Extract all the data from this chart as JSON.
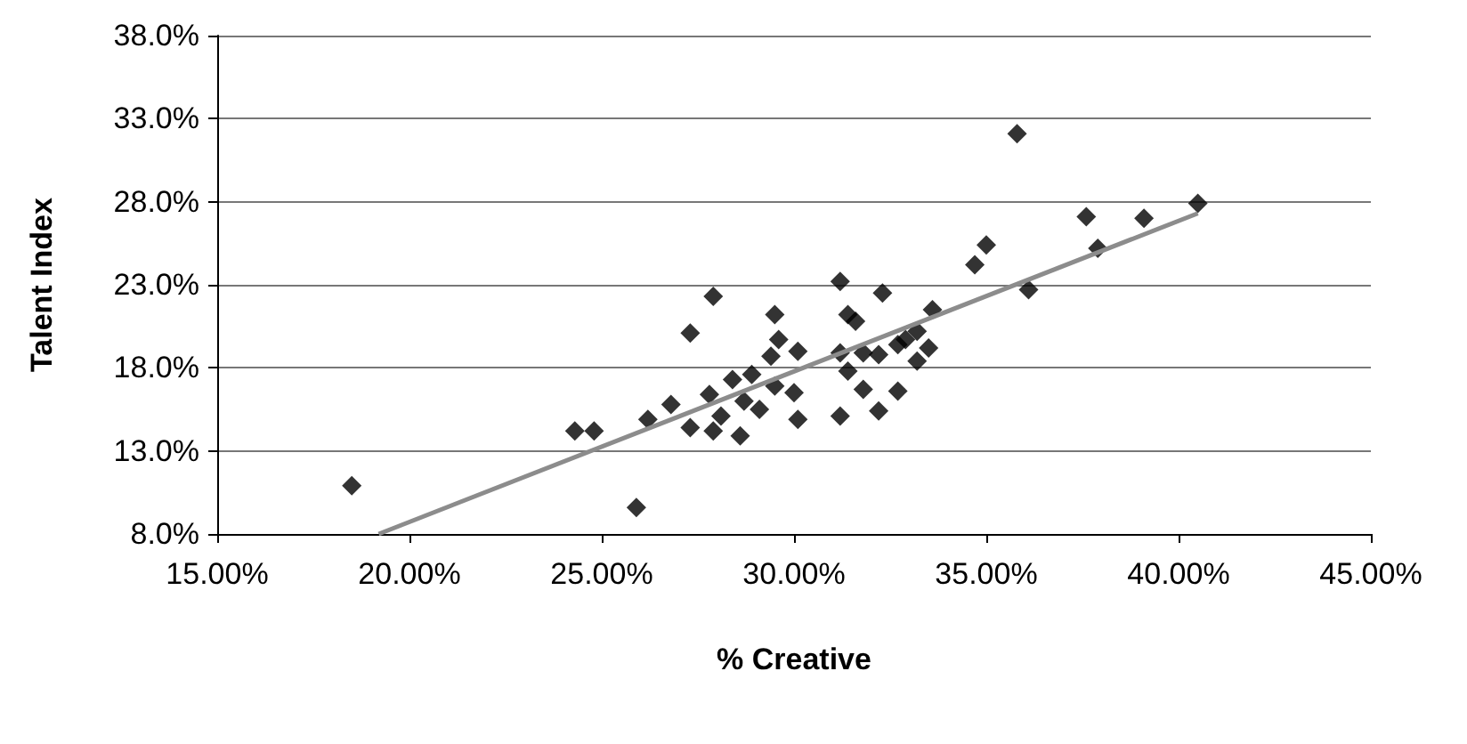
{
  "chart_data": {
    "type": "scatter",
    "xlabel": "% Creative",
    "ylabel": "Talent Index",
    "marker": "diamond",
    "grid": "y",
    "xlim": [
      15,
      45
    ],
    "xticks": [
      {
        "value": 15,
        "label": "15.00%"
      },
      {
        "value": 20,
        "label": "20.00%"
      },
      {
        "value": 25,
        "label": "25.00%"
      },
      {
        "value": 30,
        "label": "30.00%"
      },
      {
        "value": 35,
        "label": "35.00%"
      },
      {
        "value": 40,
        "label": "40.00%"
      },
      {
        "value": 45,
        "label": "45.00%"
      }
    ],
    "ylim": [
      8,
      38
    ],
    "yticks": [
      {
        "value": 8,
        "label": "8.0%"
      },
      {
        "value": 13,
        "label": "13.0%"
      },
      {
        "value": 18,
        "label": "18.0%"
      },
      {
        "value": 23,
        "label": "23.0%"
      },
      {
        "value": 28,
        "label": "28.0%"
      },
      {
        "value": 33,
        "label": "33.0%"
      },
      {
        "value": 38,
        "label": "38.0%"
      }
    ],
    "series": [
      {
        "color": "#000000",
        "x": [
          18.5,
          24.3,
          24.8,
          25.9,
          26.2,
          26.8,
          27.3,
          27.3,
          27.8,
          27.9,
          27.9,
          28.1,
          28.4,
          28.6,
          28.7,
          28.9,
          29.1,
          29.4,
          29.5,
          29.5,
          29.6,
          30.0,
          30.1,
          30.1,
          31.2,
          31.2,
          31.2,
          31.4,
          31.4,
          31.6,
          31.8,
          31.8,
          32.2,
          32.2,
          32.3,
          32.7,
          32.7,
          32.9,
          33.2,
          33.2,
          33.5,
          33.6,
          34.7,
          35.0,
          35.8,
          36.1,
          37.6,
          37.9,
          39.1,
          40.5
        ],
        "values": [
          10.9,
          14.2,
          14.2,
          9.6,
          14.9,
          15.8,
          14.4,
          20.1,
          16.4,
          14.2,
          22.3,
          15.1,
          17.3,
          13.9,
          16.0,
          17.6,
          15.5,
          18.7,
          21.2,
          16.9,
          19.7,
          16.5,
          14.9,
          19.0,
          23.2,
          18.9,
          15.1,
          17.8,
          21.2,
          20.8,
          18.9,
          16.7,
          18.8,
          15.4,
          22.5,
          19.4,
          16.6,
          19.7,
          20.2,
          18.4,
          19.2,
          21.5,
          24.2,
          25.4,
          32.1,
          22.7,
          27.1,
          25.2,
          27.0,
          27.9
        ]
      },
      {
        "type": "line",
        "color": "#8c8c8c",
        "marker": "none",
        "x": [
          19.2,
          40.5
        ],
        "values": [
          8.0,
          27.3
        ]
      }
    ]
  }
}
